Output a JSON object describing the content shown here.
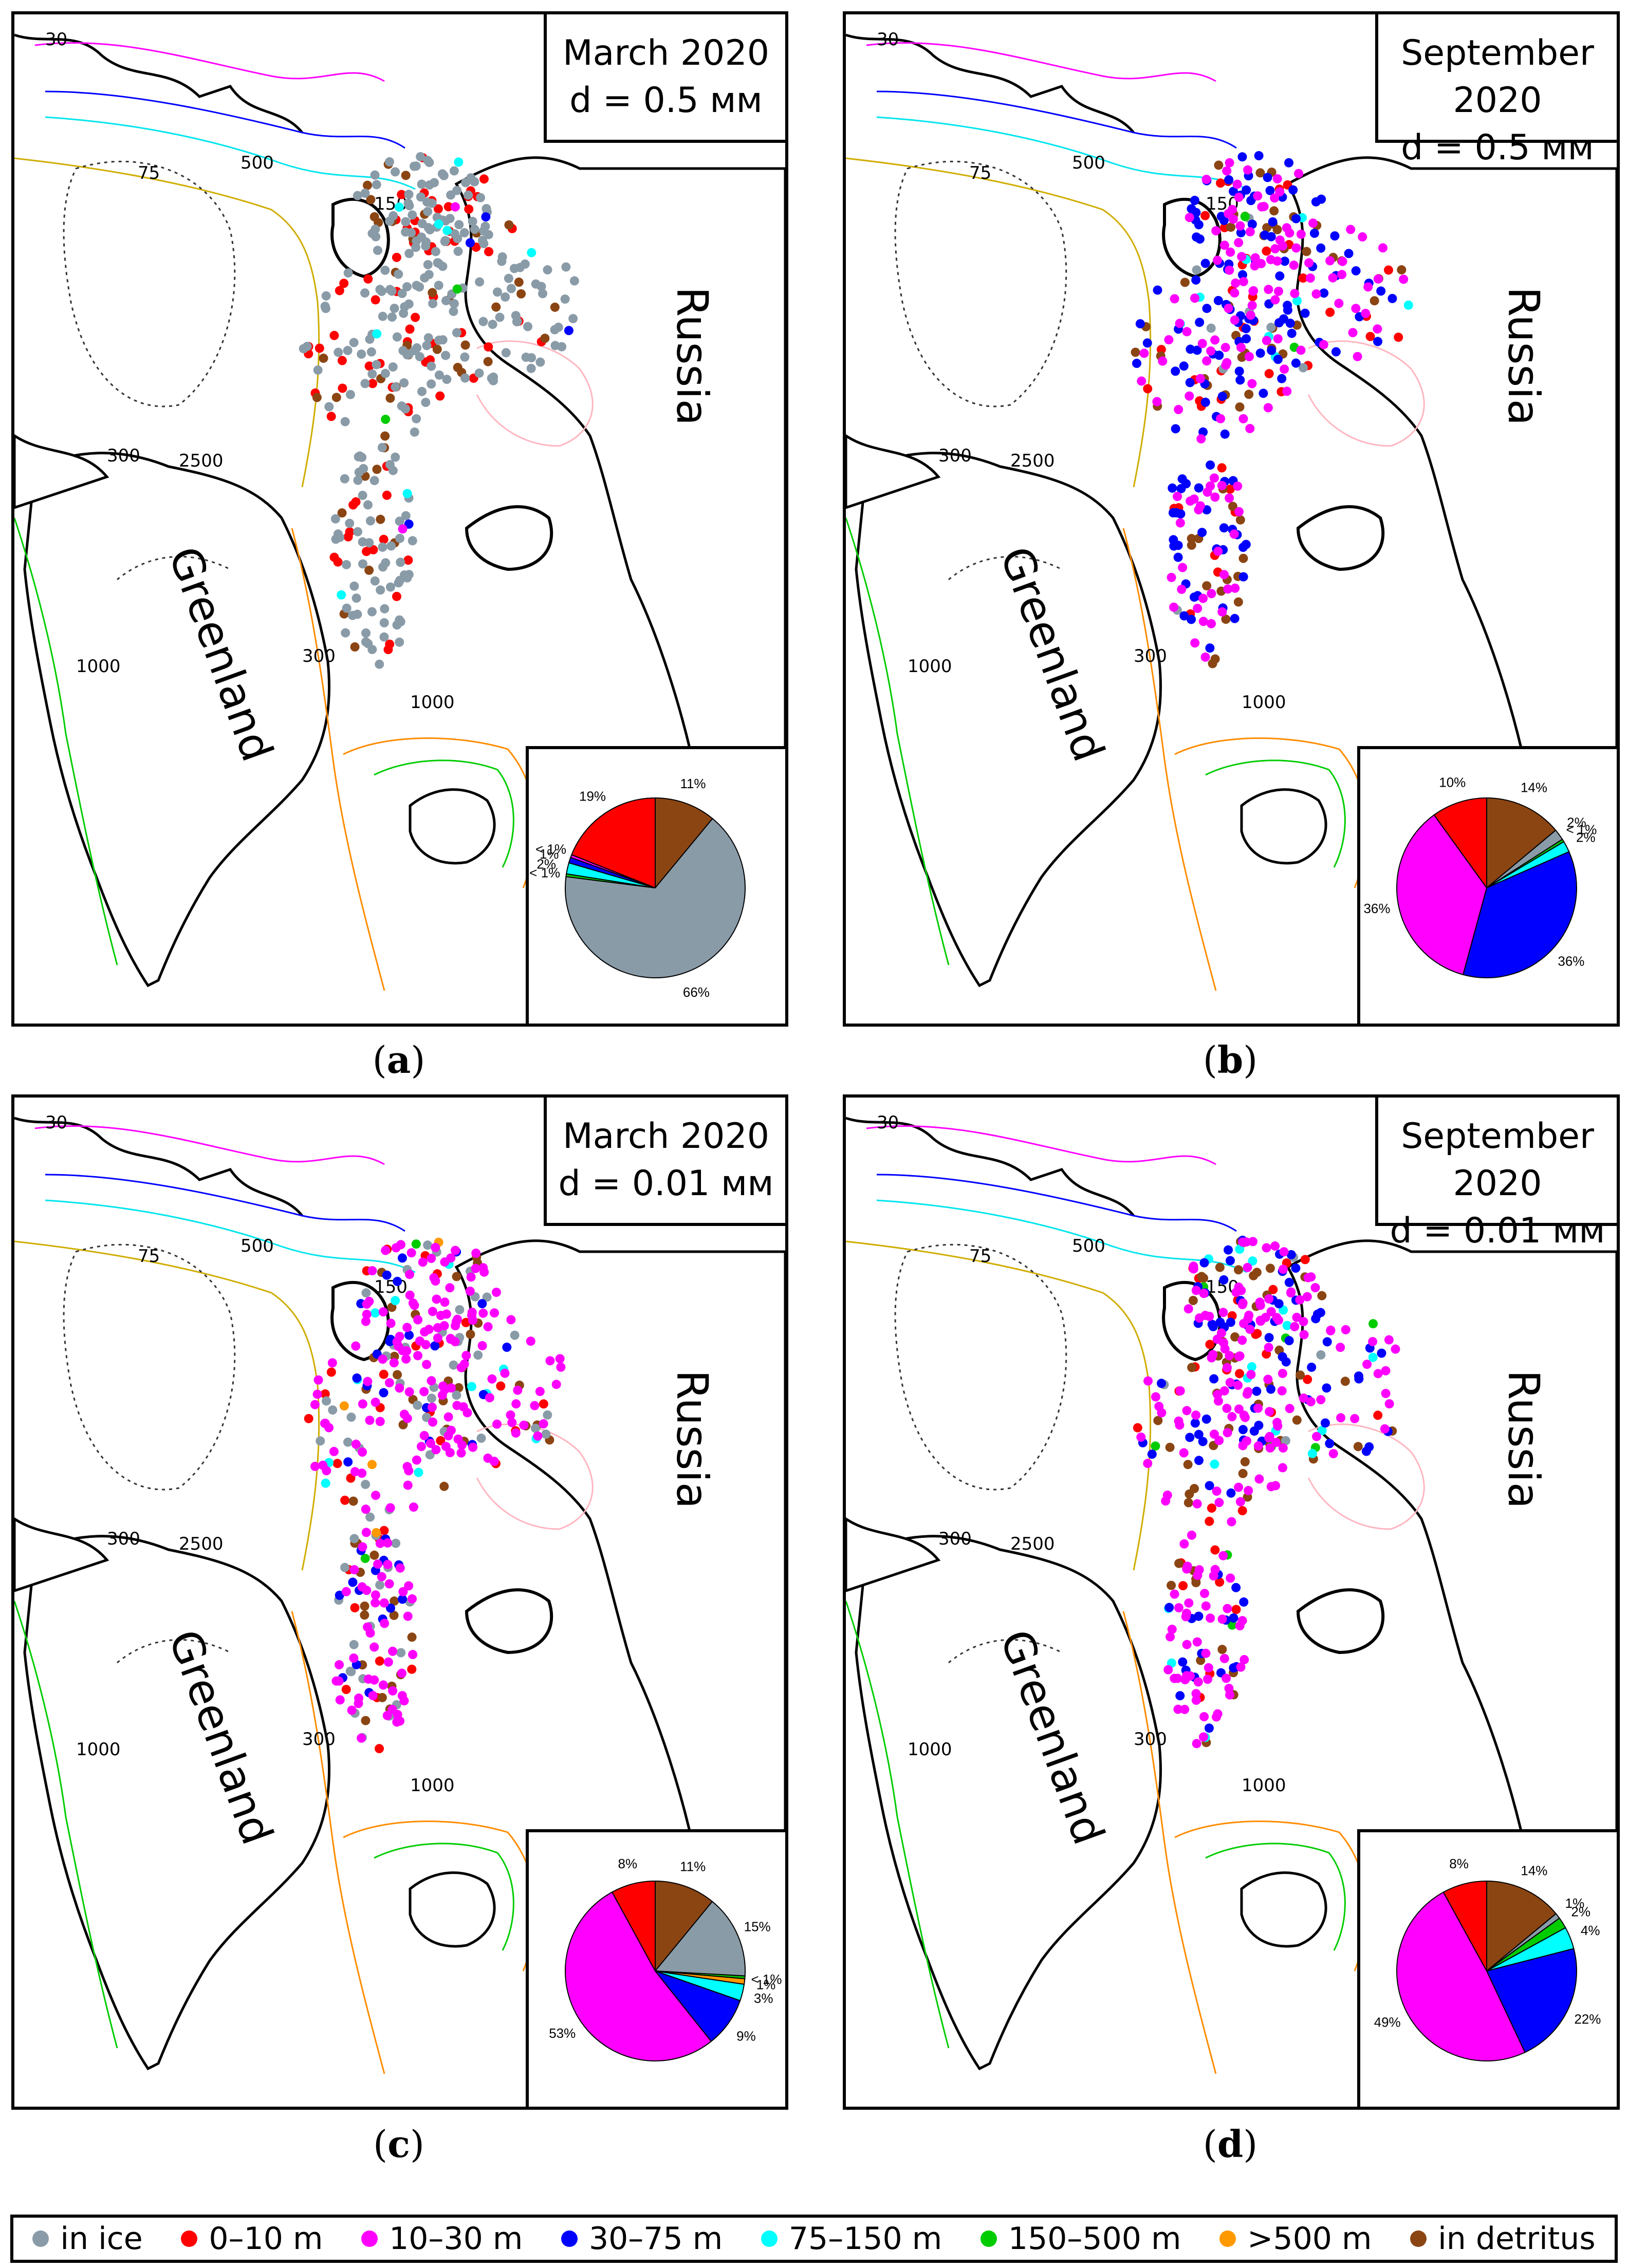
{
  "colors": {
    "in_ice": "#8a9ba8",
    "d0_10": "#ff0000",
    "d10_30": "#ff00ff",
    "d30_75": "#0000ff",
    "d75_150": "#00ffff",
    "d150_500": "#00cc00",
    "d500": "#ff9900",
    "detritus": "#8b4513"
  },
  "legend": [
    {
      "label": "in ice",
      "color": "#8a9ba8",
      "icon": "dot"
    },
    {
      "label": "0–10 m",
      "color": "#ff0000",
      "icon": "dot"
    },
    {
      "label": "10–30 m",
      "color": "#ff00ff",
      "icon": "dot"
    },
    {
      "label": "30–75 m",
      "color": "#0000ff",
      "icon": "dot"
    },
    {
      "label": "75–150 m",
      "color": "#00ffff",
      "icon": "dot"
    },
    {
      "label": "150–500 m",
      "color": "#00cc00",
      "icon": "dot"
    },
    {
      ">500": true,
      "label": ">500 m",
      "color": "#ff9900",
      "icon": "dot"
    },
    {
      "label": "in detritus",
      "color": "#8b4513",
      "icon": "dot"
    }
  ],
  "land_labels": {
    "russia": "Russia",
    "greenland": "Greenland"
  },
  "panels": [
    {
      "title": "March 2020",
      "subtitle": "d = 0.5 мм",
      "caption_letter": "a",
      "pie": [
        {
          "cls": "d0_10",
          "value": 19,
          "label": "19%"
        },
        {
          "cls": "detritus",
          "value": 11,
          "label": "11%"
        },
        {
          "cls": "in_ice",
          "value": 66,
          "label": "66%"
        },
        {
          "cls": "d150_500",
          "value": 0.5,
          "label": "< 1%"
        },
        {
          "cls": "d75_150",
          "value": 2,
          "label": "2%"
        },
        {
          "cls": "d30_75",
          "value": 1,
          "label": "1%"
        },
        {
          "cls": "d10_30",
          "value": 0.5,
          "label": "< 1%"
        }
      ]
    },
    {
      "title": "September 2020",
      "subtitle": "d = 0.5 мм",
      "caption_letter": "b",
      "pie": [
        {
          "cls": "d0_10",
          "value": 10,
          "label": "10%"
        },
        {
          "cls": "detritus",
          "value": 14,
          "label": "14%"
        },
        {
          "cls": "in_ice",
          "value": 2,
          "label": "2%"
        },
        {
          "cls": "d150_500",
          "value": 0.5,
          "label": "< 1%"
        },
        {
          "cls": "d75_150",
          "value": 2,
          "label": "2%"
        },
        {
          "cls": "d30_75",
          "value": 36,
          "label": "36%"
        },
        {
          "cls": "d10_30",
          "value": 36,
          "label": "36%"
        }
      ]
    },
    {
      "title": "March 2020",
      "subtitle": "d = 0.01 мм",
      "caption_letter": "c",
      "pie": [
        {
          "cls": "d0_10",
          "value": 8,
          "label": "8%"
        },
        {
          "cls": "detritus",
          "value": 11,
          "label": "11%"
        },
        {
          "cls": "in_ice",
          "value": 15,
          "label": "15%"
        },
        {
          "cls": "d150_500",
          "value": 0.5,
          "label": "< 1%"
        },
        {
          "cls": "d500",
          "value": 1,
          "label": "1%"
        },
        {
          "cls": "d75_150",
          "value": 3,
          "label": "3%"
        },
        {
          "cls": "d30_75",
          "value": 9,
          "label": "9%"
        },
        {
          "cls": "d10_30",
          "value": 53,
          "label": "53%"
        }
      ]
    },
    {
      "title": "September 2020",
      "subtitle": "d = 0.01 мм",
      "caption_letter": "d",
      "pie": [
        {
          "cls": "d0_10",
          "value": 8,
          "label": "8%"
        },
        {
          "cls": "detritus",
          "value": 14,
          "label": "14%"
        },
        {
          "cls": "in_ice",
          "value": 1,
          "label": "1%"
        },
        {
          "cls": "d150_500",
          "value": 2,
          "label": "2%"
        },
        {
          "cls": "d75_150",
          "value": 4,
          "label": "4%"
        },
        {
          "cls": "d30_75",
          "value": 22,
          "label": "22%"
        },
        {
          "cls": "d10_30",
          "value": 49,
          "label": "49%"
        }
      ]
    }
  ],
  "isobath_labels": [
    "30",
    "75",
    "150",
    "300",
    "500",
    "1000",
    "2500"
  ]
}
